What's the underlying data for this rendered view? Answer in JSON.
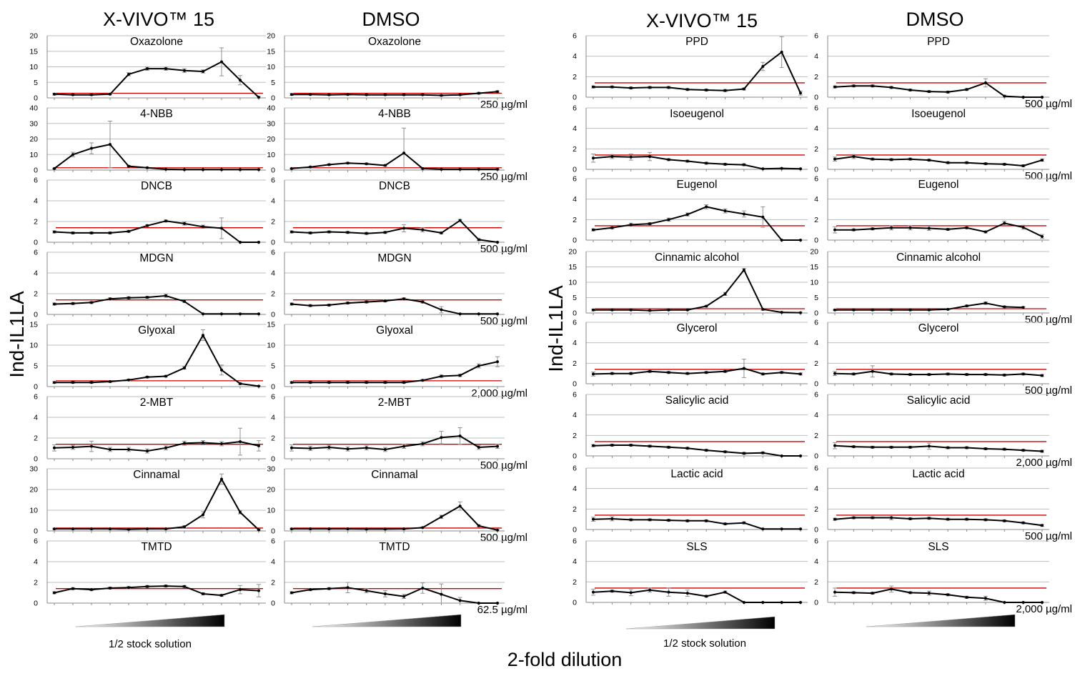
{
  "figure": {
    "y_axis_label": "Ind-IL1LA",
    "x_axis_label": "2-fold dilution",
    "gradient_label": "1/2 stock solution",
    "column_headers": [
      "X-VIVO™ 15",
      "DMSO",
      "X-VIVO™ 15",
      "DMSO"
    ],
    "threshold_color": "#cc0000",
    "line_color": "#000000",
    "grid_color": "#bdbdbd",
    "gradient_colors": [
      "#ffffff",
      "#000000"
    ]
  },
  "chart_data": [
    {
      "type": "line",
      "panel": "left-xvivo-1",
      "title": "Oxazolone",
      "ylim": [
        0,
        20
      ],
      "yticks": [
        0,
        5,
        10,
        15,
        20
      ],
      "threshold": 1.5,
      "y": [
        1.2,
        1.0,
        1.0,
        1.2,
        7.6,
        9.4,
        9.4,
        8.8,
        8.5,
        11.6,
        5.7,
        0.2
      ],
      "err": [
        0.3,
        0.2,
        0.2,
        0.2,
        0.5,
        0.5,
        0.5,
        0.6,
        0.5,
        4.5,
        1.5,
        0.2
      ]
    },
    {
      "type": "line",
      "panel": "left-dmso-1",
      "title": "Oxazolone",
      "ylim": [
        0,
        20
      ],
      "yticks": [
        0,
        5,
        10,
        15,
        20
      ],
      "threshold": 1.5,
      "y": [
        1.1,
        1.1,
        1.0,
        1.1,
        1.0,
        1.0,
        1.0,
        1.0,
        0.8,
        1.0,
        1.5,
        2.0
      ],
      "err": [
        0.3,
        0.2,
        0.2,
        0.2,
        0.2,
        0.2,
        0.2,
        0.2,
        0.2,
        0.2,
        0.3,
        0.3
      ],
      "annotation": "250 µg/ml"
    },
    {
      "type": "line",
      "panel": "left-xvivo-2",
      "title": "4-NBB",
      "ylim": [
        0,
        40
      ],
      "yticks": [
        0,
        10,
        20,
        30,
        40
      ],
      "threshold": 1.5,
      "y": [
        1.0,
        10.0,
        14.0,
        16.5,
        2.5,
        1.5,
        0.5,
        0.3,
        0.3,
        0.3,
        0.3,
        0.3
      ],
      "err": [
        0.3,
        1.5,
        3.5,
        15.0,
        0.5,
        0.3,
        0.2,
        0.2,
        0.2,
        0.2,
        0.2,
        0.2
      ]
    },
    {
      "type": "line",
      "panel": "left-dmso-2",
      "title": "4-NBB",
      "ylim": [
        0,
        40
      ],
      "yticks": [
        0,
        10,
        20,
        30,
        40
      ],
      "threshold": 1.5,
      "y": [
        1.0,
        2.0,
        3.5,
        4.5,
        4.0,
        3.0,
        11.0,
        1.0,
        0.5,
        0.5,
        0.5,
        0.5
      ],
      "err": [
        0.3,
        0.3,
        0.5,
        0.5,
        0.5,
        0.5,
        16.0,
        0.3,
        0.2,
        0.2,
        0.2,
        0.2
      ],
      "annotation": "250 µg/ml"
    },
    {
      "type": "line",
      "panel": "left-xvivo-3",
      "title": "DNCB",
      "ylim": [
        0,
        6
      ],
      "yticks": [
        0,
        2,
        4,
        6
      ],
      "threshold": 1.4,
      "y": [
        1.0,
        0.9,
        0.9,
        0.9,
        1.05,
        1.6,
        2.05,
        1.8,
        1.5,
        1.35,
        0.0,
        0.0
      ],
      "err": [
        0.1,
        0.1,
        0.1,
        0.1,
        0.1,
        0.1,
        0.1,
        0.15,
        0.15,
        1.0,
        0.0,
        0.0
      ]
    },
    {
      "type": "line",
      "panel": "left-dmso-3",
      "title": "DNCB",
      "ylim": [
        0,
        6
      ],
      "yticks": [
        0,
        2,
        4,
        6
      ],
      "threshold": 1.4,
      "y": [
        1.0,
        0.9,
        1.0,
        0.95,
        0.85,
        0.95,
        1.35,
        1.2,
        0.9,
        2.1,
        0.25,
        0.0
      ],
      "err": [
        0.1,
        0.1,
        0.1,
        0.1,
        0.1,
        0.1,
        0.35,
        0.2,
        0.1,
        0.1,
        0.1,
        0.0
      ],
      "annotation": "500 µg/ml"
    },
    {
      "type": "line",
      "panel": "left-xvivo-4",
      "title": "MDGN",
      "ylim": [
        0,
        6
      ],
      "yticks": [
        0,
        2,
        4,
        6
      ],
      "threshold": 1.4,
      "y": [
        1.0,
        1.05,
        1.15,
        1.5,
        1.6,
        1.65,
        1.8,
        1.25,
        0.05,
        0.05,
        0.05,
        0.05
      ],
      "err": [
        0.1,
        0.1,
        0.1,
        0.1,
        0.1,
        0.1,
        0.15,
        0.1,
        0.0,
        0.0,
        0.0,
        0.0
      ]
    },
    {
      "type": "line",
      "panel": "left-dmso-4",
      "title": "MDGN",
      "ylim": [
        0,
        6
      ],
      "yticks": [
        0,
        2,
        4,
        6
      ],
      "threshold": 1.4,
      "y": [
        1.0,
        0.85,
        0.9,
        1.1,
        1.2,
        1.3,
        1.5,
        1.2,
        0.45,
        0.05,
        0.05,
        0.05
      ],
      "err": [
        0.1,
        0.1,
        0.1,
        0.1,
        0.1,
        0.1,
        0.1,
        0.1,
        0.3,
        0.0,
        0.0,
        0.0
      ],
      "annotation": "500 µg/ml"
    },
    {
      "type": "line",
      "panel": "left-xvivo-5",
      "title": "Glyoxal",
      "ylim": [
        0,
        15
      ],
      "yticks": [
        0,
        5,
        10,
        15
      ],
      "threshold": 1.4,
      "y": [
        1.0,
        1.0,
        1.0,
        1.2,
        1.6,
        2.3,
        2.5,
        4.5,
        12.4,
        4.0,
        0.7,
        0.1
      ],
      "err": [
        0.2,
        0.2,
        0.2,
        0.2,
        0.2,
        0.2,
        0.2,
        0.3,
        1.3,
        1.2,
        0.2,
        0.1
      ]
    },
    {
      "type": "line",
      "panel": "left-dmso-5",
      "title": "Glyoxal",
      "ylim": [
        0,
        15
      ],
      "yticks": [
        0,
        5,
        10,
        15
      ],
      "threshold": 1.4,
      "y": [
        1.0,
        1.0,
        1.0,
        1.0,
        1.0,
        1.0,
        1.0,
        1.5,
        2.5,
        2.7,
        5.0,
        6.0
      ],
      "err": [
        0.2,
        0.2,
        0.2,
        0.2,
        0.2,
        0.2,
        0.2,
        0.2,
        0.3,
        0.3,
        0.5,
        1.2
      ],
      "annotation": "2,000 µg/ml"
    },
    {
      "type": "line",
      "panel": "left-xvivo-6",
      "title": "2-MBT",
      "ylim": [
        0,
        6
      ],
      "yticks": [
        0,
        2,
        4,
        6
      ],
      "threshold": 1.4,
      "y": [
        1.05,
        1.1,
        1.2,
        0.9,
        0.9,
        0.75,
        1.05,
        1.5,
        1.55,
        1.45,
        1.65,
        1.25
      ],
      "err": [
        0.3,
        0.2,
        0.5,
        0.2,
        0.2,
        0.2,
        0.2,
        0.2,
        0.2,
        0.2,
        1.3,
        0.5
      ]
    },
    {
      "type": "line",
      "panel": "left-dmso-6",
      "title": "2-MBT",
      "ylim": [
        0,
        6
      ],
      "yticks": [
        0,
        2,
        4,
        6
      ],
      "threshold": 1.4,
      "y": [
        1.05,
        1.0,
        1.1,
        0.95,
        1.05,
        0.9,
        1.2,
        1.45,
        2.05,
        2.2,
        1.1,
        1.2
      ],
      "err": [
        0.3,
        0.2,
        0.2,
        0.2,
        0.2,
        0.2,
        0.2,
        0.2,
        0.6,
        0.8,
        0.2,
        0.2
      ],
      "annotation": "500 µg/ml"
    },
    {
      "type": "line",
      "panel": "left-xvivo-7",
      "title": "Cinnamal",
      "ylim": [
        0,
        30
      ],
      "yticks": [
        0,
        10,
        20,
        30
      ],
      "threshold": 1.4,
      "y": [
        1.0,
        1.0,
        1.0,
        1.0,
        0.8,
        1.0,
        1.0,
        2.0,
        7.8,
        25.0,
        9.0,
        0.5
      ],
      "err": [
        0.3,
        0.3,
        0.3,
        0.3,
        0.3,
        0.3,
        0.3,
        0.5,
        1.5,
        2.5,
        0.8,
        0.3
      ]
    },
    {
      "type": "line",
      "panel": "left-dmso-7",
      "title": "Cinnamal",
      "ylim": [
        0,
        30
      ],
      "yticks": [
        0,
        10,
        20,
        30
      ],
      "threshold": 1.4,
      "y": [
        1.0,
        1.0,
        1.0,
        1.0,
        0.9,
        0.9,
        1.0,
        1.6,
        6.8,
        12.0,
        2.5,
        0.4
      ],
      "err": [
        0.3,
        0.3,
        0.3,
        0.3,
        0.3,
        0.3,
        0.3,
        0.3,
        0.8,
        2.0,
        0.5,
        0.3
      ],
      "annotation": "500 µg/ml"
    },
    {
      "type": "line",
      "panel": "left-xvivo-8",
      "title": "TMTD",
      "ylim": [
        0,
        6
      ],
      "yticks": [
        0,
        2,
        4,
        6
      ],
      "threshold": 1.4,
      "y": [
        1.0,
        1.4,
        1.3,
        1.45,
        1.5,
        1.6,
        1.65,
        1.6,
        0.9,
        0.75,
        1.3,
        1.2
      ],
      "err": [
        0.1,
        0.1,
        0.1,
        0.1,
        0.1,
        0.1,
        0.1,
        0.1,
        0.1,
        0.1,
        0.4,
        0.6
      ]
    },
    {
      "type": "line",
      "panel": "left-dmso-8",
      "title": "TMTD",
      "ylim": [
        0,
        6
      ],
      "yticks": [
        0,
        2,
        4,
        6
      ],
      "threshold": 1.4,
      "y": [
        1.0,
        1.3,
        1.4,
        1.5,
        1.2,
        0.9,
        0.65,
        1.45,
        0.85,
        0.25,
        0.0,
        0.0
      ],
      "err": [
        0.1,
        0.1,
        0.1,
        0.5,
        0.2,
        0.3,
        0.2,
        0.5,
        1.0,
        0.3,
        0.0,
        0.0
      ],
      "annotation": "62.5 µg/ml"
    },
    {
      "type": "line",
      "panel": "right-xvivo-1",
      "title": "PPD",
      "ylim": [
        0,
        6
      ],
      "yticks": [
        0,
        2,
        4,
        6
      ],
      "threshold": 1.4,
      "y": [
        1.0,
        1.0,
        0.9,
        0.95,
        0.95,
        0.75,
        0.7,
        0.65,
        0.8,
        3.0,
        4.4,
        0.4
      ],
      "err": [
        0.1,
        0.1,
        0.1,
        0.1,
        0.1,
        0.1,
        0.1,
        0.1,
        0.1,
        0.4,
        1.5,
        0.2
      ]
    },
    {
      "type": "line",
      "panel": "right-dmso-1",
      "title": "PPD",
      "ylim": [
        0,
        6
      ],
      "yticks": [
        0,
        2,
        4,
        6
      ],
      "threshold": 1.4,
      "y": [
        1.0,
        1.1,
        1.1,
        0.95,
        0.7,
        0.55,
        0.5,
        0.75,
        1.4,
        0.1,
        0.0,
        0.0
      ],
      "err": [
        0.1,
        0.1,
        0.1,
        0.1,
        0.1,
        0.1,
        0.1,
        0.1,
        0.4,
        0.1,
        0.0,
        0.0
      ],
      "annotation": "500 µg/ml"
    },
    {
      "type": "line",
      "panel": "right-xvivo-2",
      "title": "Isoeugenol",
      "ylim": [
        0,
        6
      ],
      "yticks": [
        0,
        2,
        4,
        6
      ],
      "threshold": 1.4,
      "y": [
        1.1,
        1.25,
        1.2,
        1.25,
        0.95,
        0.8,
        0.6,
        0.5,
        0.45,
        0.05,
        0.1,
        0.05
      ],
      "err": [
        0.4,
        0.2,
        0.3,
        0.4,
        0.1,
        0.1,
        0.1,
        0.1,
        0.1,
        0.0,
        0.0,
        0.0
      ]
    },
    {
      "type": "line",
      "panel": "right-dmso-2",
      "title": "Isoeugenol",
      "ylim": [
        0,
        6
      ],
      "yticks": [
        0,
        2,
        4,
        6
      ],
      "threshold": 1.4,
      "y": [
        1.0,
        1.25,
        1.0,
        0.95,
        1.0,
        0.9,
        0.65,
        0.65,
        0.55,
        0.5,
        0.35,
        0.9
      ],
      "err": [
        0.2,
        0.2,
        0.1,
        0.1,
        0.1,
        0.1,
        0.1,
        0.1,
        0.1,
        0.1,
        0.1,
        0.1
      ],
      "annotation": "500 µg/ml"
    },
    {
      "type": "line",
      "panel": "right-xvivo-3",
      "title": "Eugenol",
      "ylim": [
        0,
        6
      ],
      "yticks": [
        0,
        2,
        4,
        6
      ],
      "threshold": 1.4,
      "y": [
        1.0,
        1.2,
        1.5,
        1.6,
        2.0,
        2.5,
        3.25,
        2.85,
        2.55,
        2.25,
        0.0,
        0.0
      ],
      "err": [
        0.1,
        0.1,
        0.15,
        0.1,
        0.15,
        0.15,
        0.2,
        0.2,
        0.3,
        1.0,
        0.0,
        0.0
      ]
    },
    {
      "type": "line",
      "panel": "right-dmso-3",
      "title": "Eugenol",
      "ylim": [
        0,
        6
      ],
      "yticks": [
        0,
        2,
        4,
        6
      ],
      "threshold": 1.4,
      "y": [
        1.0,
        1.0,
        1.1,
        1.2,
        1.2,
        1.15,
        1.05,
        1.2,
        0.8,
        1.65,
        1.25,
        0.35
      ],
      "err": [
        0.3,
        0.1,
        0.1,
        0.2,
        0.2,
        0.2,
        0.1,
        0.1,
        0.1,
        0.2,
        0.2,
        0.2
      ]
    },
    {
      "type": "line",
      "panel": "right-xvivo-4",
      "title": "Cinnamic alcohol",
      "ylim": [
        0,
        20
      ],
      "yticks": [
        0,
        5,
        10,
        15,
        20
      ],
      "threshold": 1.4,
      "y": [
        1.0,
        1.0,
        1.0,
        0.8,
        1.0,
        1.0,
        2.2,
        6.2,
        14.0,
        1.2,
        0.2,
        0.1
      ],
      "err": [
        0.3,
        0.2,
        0.2,
        0.2,
        0.2,
        0.2,
        0.3,
        0.5,
        0.5,
        0.3,
        0.2,
        0.1
      ]
    },
    {
      "type": "line",
      "panel": "right-dmso-4",
      "title": "Cinnamic alcohol",
      "ylim": [
        0,
        20
      ],
      "yticks": [
        0,
        5,
        10,
        15,
        20
      ],
      "threshold": 1.4,
      "y": [
        1.0,
        1.0,
        1.0,
        1.0,
        1.0,
        1.0,
        1.2,
        2.3,
        3.2,
        2.0,
        1.8,
        null
      ],
      "err": [
        0.2,
        0.2,
        0.2,
        0.2,
        0.2,
        0.2,
        0.2,
        0.3,
        0.4,
        0.3,
        0.3,
        null
      ],
      "annotation": "500 µg/ml"
    },
    {
      "type": "line",
      "panel": "right-xvivo-5",
      "title": "Glycerol",
      "ylim": [
        0,
        6
      ],
      "yticks": [
        0,
        2,
        4,
        6
      ],
      "threshold": 1.4,
      "y": [
        0.95,
        1.0,
        1.0,
        1.2,
        1.1,
        1.0,
        1.1,
        1.2,
        1.5,
        0.95,
        1.1,
        0.95
      ],
      "err": [
        0.2,
        0.1,
        0.1,
        0.1,
        0.1,
        0.1,
        0.1,
        0.1,
        0.9,
        0.1,
        0.1,
        0.1
      ]
    },
    {
      "type": "line",
      "panel": "right-dmso-5",
      "title": "Glycerol",
      "ylim": [
        0,
        6
      ],
      "yticks": [
        0,
        2,
        4,
        6
      ],
      "threshold": 1.4,
      "y": [
        1.0,
        0.95,
        1.2,
        0.95,
        0.9,
        0.9,
        0.95,
        0.9,
        0.9,
        0.85,
        0.95,
        0.8
      ],
      "err": [
        0.2,
        0.1,
        0.55,
        0.1,
        0.1,
        0.1,
        0.1,
        0.1,
        0.1,
        0.1,
        0.1,
        0.1
      ],
      "annotation": "500 µg/ml"
    },
    {
      "type": "line",
      "panel": "right-xvivo-6",
      "title": "Salicylic acid",
      "ylim": [
        0,
        6
      ],
      "yticks": [
        0,
        2,
        4,
        6
      ],
      "threshold": 1.4,
      "y": [
        1.0,
        1.05,
        1.05,
        0.95,
        0.85,
        0.75,
        0.55,
        0.4,
        0.25,
        0.3,
        0.0,
        0.0
      ],
      "err": [
        0.1,
        0.1,
        0.1,
        0.1,
        0.1,
        0.1,
        0.1,
        0.1,
        0.1,
        0.1,
        0.0,
        0.0
      ]
    },
    {
      "type": "line",
      "panel": "right-dmso-6",
      "title": "Salicylic acid",
      "ylim": [
        0,
        6
      ],
      "yticks": [
        0,
        2,
        4,
        6
      ],
      "threshold": 1.4,
      "y": [
        1.0,
        0.9,
        0.85,
        0.85,
        0.85,
        0.95,
        0.8,
        0.8,
        0.7,
        0.65,
        0.55,
        0.45
      ],
      "err": [
        0.3,
        0.1,
        0.1,
        0.1,
        0.1,
        0.3,
        0.1,
        0.1,
        0.1,
        0.1,
        0.1,
        0.1
      ],
      "annotation": "2,000 µg/ml"
    },
    {
      "type": "line",
      "panel": "right-xvivo-7",
      "title": "Lactic acid",
      "ylim": [
        0,
        6
      ],
      "yticks": [
        0,
        2,
        4,
        6
      ],
      "threshold": 1.4,
      "y": [
        1.0,
        1.05,
        0.95,
        0.95,
        0.9,
        0.85,
        0.85,
        0.55,
        0.65,
        0.05,
        0.05,
        0.05
      ],
      "err": [
        0.2,
        0.2,
        0.1,
        0.1,
        0.1,
        0.1,
        0.1,
        0.1,
        0.1,
        0.0,
        0.0,
        0.0
      ]
    },
    {
      "type": "line",
      "panel": "right-dmso-7",
      "title": "Lactic acid",
      "ylim": [
        0,
        6
      ],
      "yticks": [
        0,
        2,
        4,
        6
      ],
      "threshold": 1.4,
      "y": [
        1.0,
        1.15,
        1.15,
        1.15,
        1.05,
        1.1,
        1.0,
        1.0,
        0.95,
        0.85,
        0.65,
        0.4
      ],
      "err": [
        0.1,
        0.1,
        0.1,
        0.2,
        0.1,
        0.1,
        0.1,
        0.1,
        0.1,
        0.1,
        0.1,
        0.1
      ],
      "annotation": "500 µg/ml"
    },
    {
      "type": "line",
      "panel": "right-xvivo-8",
      "title": "SLS",
      "ylim": [
        0,
        6
      ],
      "yticks": [
        0,
        2,
        4,
        6
      ],
      "threshold": 1.4,
      "y": [
        1.0,
        1.1,
        0.95,
        1.2,
        1.0,
        0.9,
        0.6,
        1.0,
        0.0,
        0.0,
        0.0,
        0.0
      ],
      "err": [
        0.3,
        0.1,
        0.3,
        0.2,
        0.4,
        0.3,
        0.1,
        0.1,
        0.0,
        0.0,
        0.0,
        0.0
      ]
    },
    {
      "type": "line",
      "panel": "right-dmso-8",
      "title": "SLS",
      "ylim": [
        0,
        6
      ],
      "yticks": [
        0,
        2,
        4,
        6
      ],
      "threshold": 1.4,
      "y": [
        1.0,
        0.95,
        0.9,
        1.3,
        0.95,
        0.9,
        0.75,
        0.5,
        0.4,
        0.0,
        0.0,
        0.0
      ],
      "err": [
        0.4,
        0.1,
        0.1,
        0.3,
        0.1,
        0.2,
        0.1,
        0.1,
        0.2,
        0.0,
        0.0,
        0.0
      ],
      "annotation": "2,000 µg/ml"
    }
  ]
}
